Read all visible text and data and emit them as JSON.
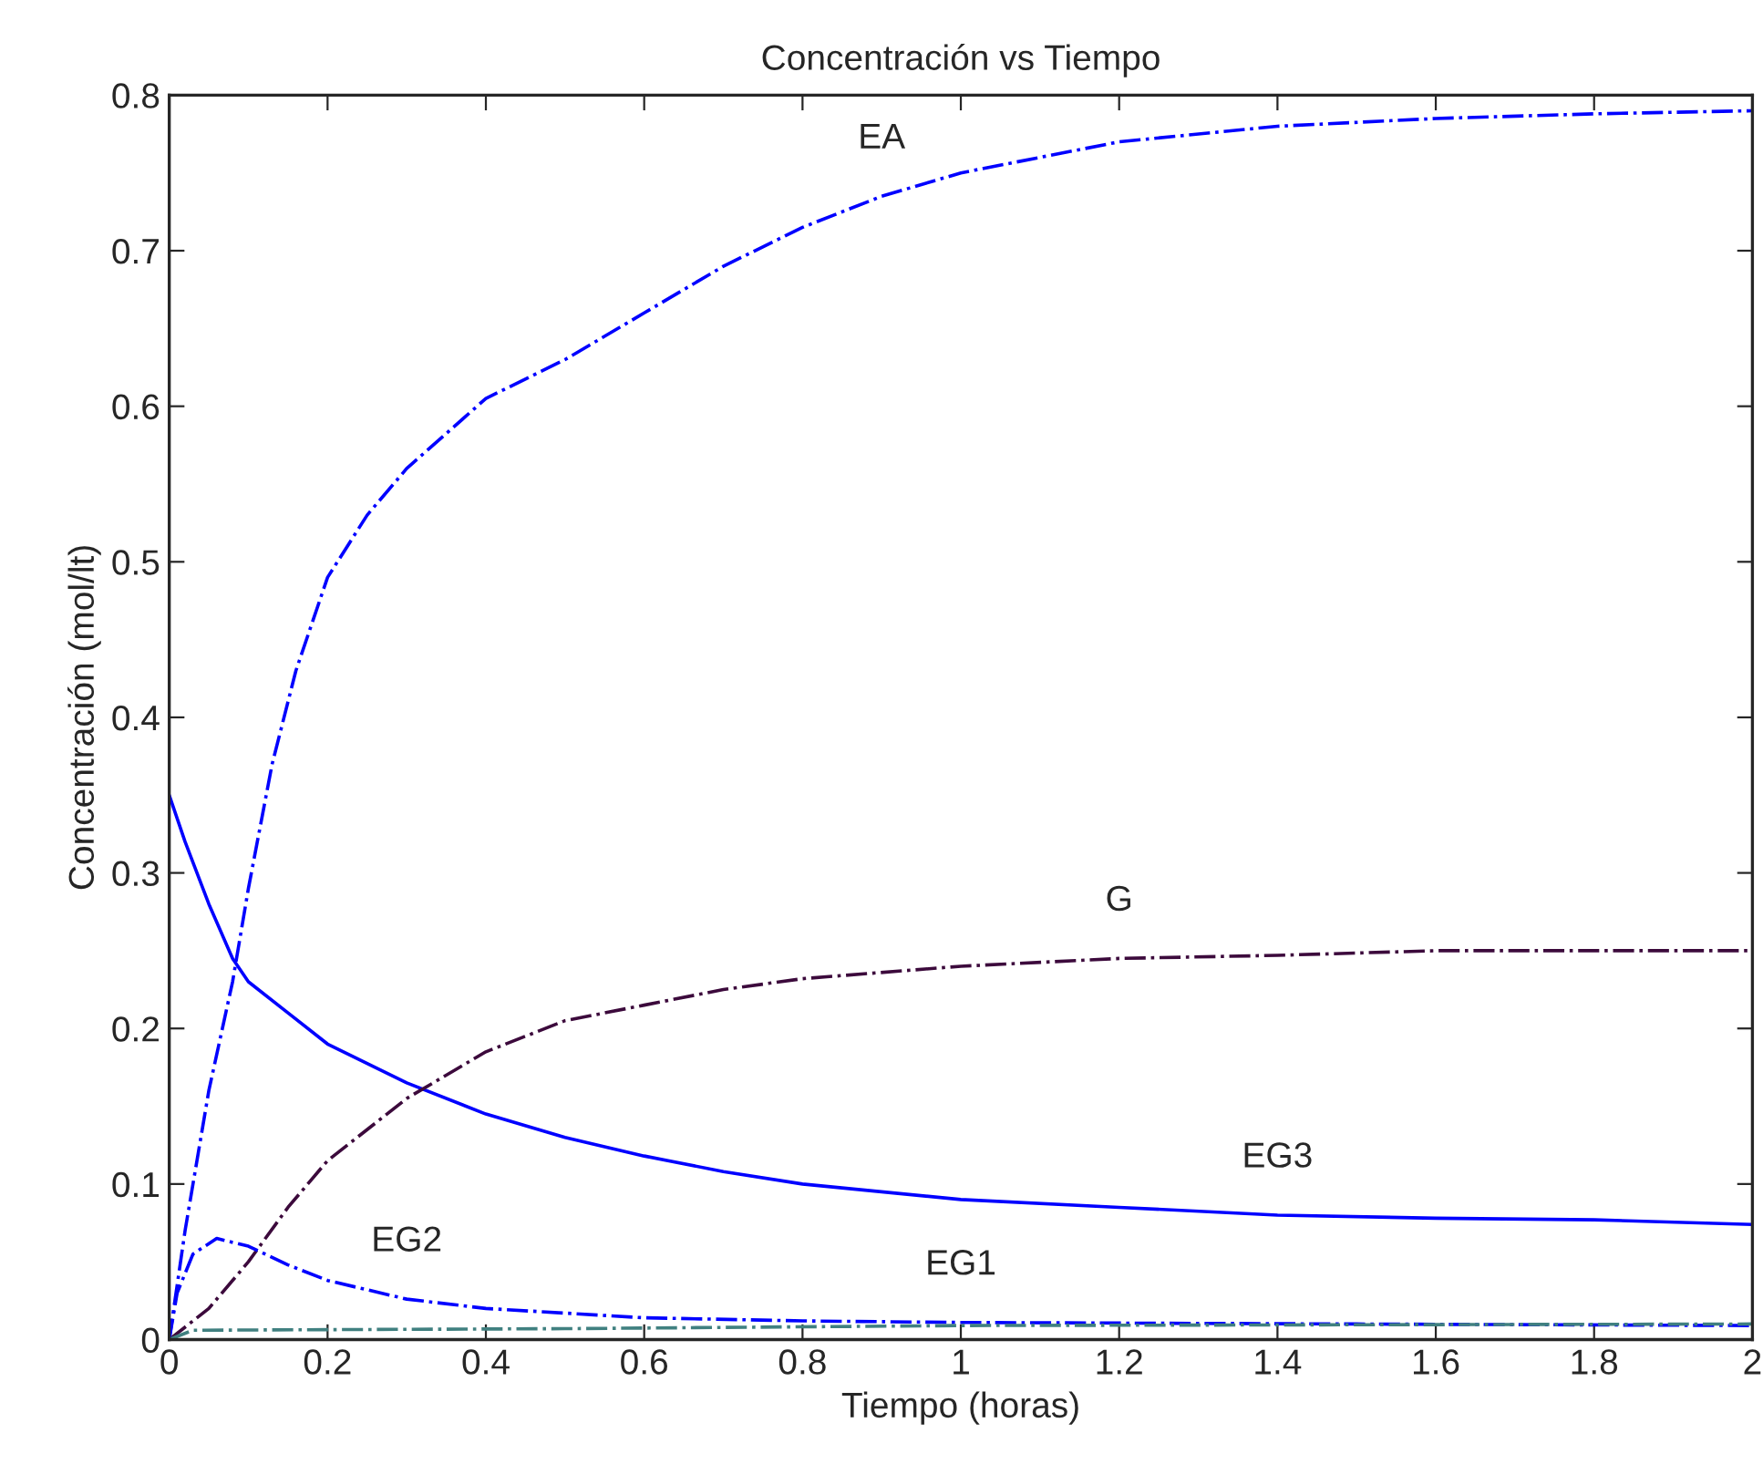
{
  "chart_data": {
    "type": "line",
    "title": "Concentración vs Tiempo",
    "xlabel": "Tiempo (horas)",
    "ylabel": "Concentración (mol/lt)",
    "xlim": [
      0,
      2
    ],
    "ylim": [
      0,
      0.8
    ],
    "xticks": [
      0,
      0.2,
      0.4,
      0.6,
      0.8,
      1,
      1.2,
      1.4,
      1.6,
      1.8,
      2
    ],
    "yticks": [
      0,
      0.1,
      0.2,
      0.3,
      0.4,
      0.5,
      0.6,
      0.7,
      0.8
    ],
    "grid": false,
    "legend": false,
    "series": [
      {
        "color": "#0000ff",
        "line_style": "dashdot",
        "x": [
          0,
          0.02,
          0.05,
          0.08,
          0.1,
          0.13,
          0.16,
          0.2,
          0.25,
          0.3,
          0.4,
          0.5,
          0.6,
          0.7,
          0.8,
          0.9,
          1.0,
          1.2,
          1.4,
          1.6,
          1.8,
          2
        ],
        "values": [
          0,
          0.07,
          0.16,
          0.23,
          0.29,
          0.37,
          0.43,
          0.49,
          0.53,
          0.56,
          0.605,
          0.63,
          0.66,
          0.69,
          0.715,
          0.735,
          0.75,
          0.77,
          0.78,
          0.785,
          0.788,
          0.79
        ]
      },
      {
        "color": "#0000ff",
        "line_style": "solid",
        "x": [
          0,
          0.02,
          0.05,
          0.08,
          0.1,
          0.15,
          0.2,
          0.3,
          0.4,
          0.5,
          0.6,
          0.7,
          0.8,
          1.0,
          1.2,
          1.4,
          1.6,
          1.8,
          2
        ],
        "values": [
          0.35,
          0.32,
          0.28,
          0.245,
          0.23,
          0.21,
          0.19,
          0.165,
          0.145,
          0.13,
          0.118,
          0.108,
          0.1,
          0.09,
          0.085,
          0.08,
          0.078,
          0.077,
          0.074
        ]
      },
      {
        "color": "#3c0a3c",
        "line_style": "dashdot",
        "x": [
          0,
          0.05,
          0.1,
          0.15,
          0.2,
          0.3,
          0.4,
          0.5,
          0.6,
          0.7,
          0.8,
          1.0,
          1.2,
          1.4,
          1.6,
          2
        ],
        "values": [
          0,
          0.02,
          0.05,
          0.085,
          0.115,
          0.155,
          0.185,
          0.205,
          0.215,
          0.225,
          0.232,
          0.24,
          0.245,
          0.247,
          0.25,
          0.25
        ]
      },
      {
        "color": "#0000ff",
        "line_style": "dashdot",
        "x": [
          0,
          0.01,
          0.03,
          0.06,
          0.1,
          0.15,
          0.2,
          0.3,
          0.4,
          0.5,
          0.6,
          0.8,
          1.0,
          1.5,
          2
        ],
        "values": [
          0,
          0.03,
          0.055,
          0.065,
          0.06,
          0.048,
          0.038,
          0.026,
          0.02,
          0.017,
          0.014,
          0.012,
          0.011,
          0.01,
          0.009
        ]
      },
      {
        "color": "#408080",
        "line_style": "dashdot",
        "x": [
          0,
          0.03,
          0.5,
          1.0,
          2
        ],
        "values": [
          0,
          0.006,
          0.007,
          0.009,
          0.01
        ]
      }
    ],
    "annotations": [
      {
        "text": "EA",
        "x": 0.9,
        "y": 0.735
      },
      {
        "text": "G",
        "x": 1.2,
        "y": 0.245
      },
      {
        "text": "EG3",
        "x": 1.4,
        "y": 0.08
      },
      {
        "text": "EG2",
        "x": 0.3,
        "y": 0.026
      },
      {
        "text": "EG1",
        "x": 1.0,
        "y": 0.011
      }
    ]
  }
}
